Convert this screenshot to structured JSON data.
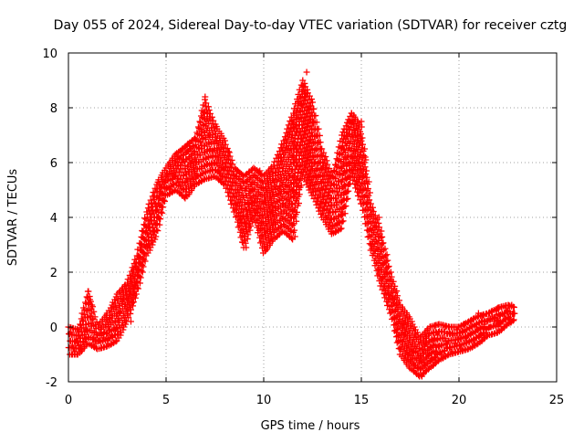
{
  "chart_data": {
    "type": "scatter",
    "title": "Day 055 of 2024, Sidereal Day-to-day VTEC variation (SDTVAR) for receiver cztg",
    "xlabel": "GPS time / hours",
    "ylabel": "SDTVAR / TECUs",
    "xlim": [
      0,
      25
    ],
    "ylim": [
      -2,
      10
    ],
    "xticks": [
      0,
      5,
      10,
      15,
      20,
      25
    ],
    "yticks": [
      -2,
      0,
      2,
      4,
      6,
      8,
      10
    ],
    "grid": true,
    "marker": "+",
    "color": "#ff0000",
    "series": [
      {
        "name": "SDTVAR",
        "points": [
          [
            0.1,
            -0.2
          ],
          [
            0.2,
            -0.7
          ],
          [
            0.3,
            -0.9
          ],
          [
            0.4,
            -0.5
          ],
          [
            0.5,
            -0.3
          ],
          [
            0.6,
            -0.8
          ],
          [
            0.8,
            -0.4
          ],
          [
            0.9,
            -0.1
          ],
          [
            1.0,
            1.3
          ],
          [
            1.1,
            1.0
          ],
          [
            1.2,
            0.8
          ],
          [
            1.3,
            -0.4
          ],
          [
            1.4,
            -0.6
          ],
          [
            1.5,
            -0.3
          ],
          [
            1.6,
            -0.5
          ],
          [
            1.8,
            -0.4
          ],
          [
            2.0,
            -0.5
          ],
          [
            2.1,
            0.3
          ],
          [
            2.2,
            -0.3
          ],
          [
            2.4,
            -0.1
          ],
          [
            2.6,
            0.5
          ],
          [
            2.8,
            1.0
          ],
          [
            3.0,
            0.8
          ],
          [
            3.1,
            1.2
          ],
          [
            3.2,
            0.2
          ],
          [
            3.3,
            0.9
          ],
          [
            3.4,
            1.5
          ],
          [
            3.5,
            2.2
          ],
          [
            3.6,
            2.5
          ],
          [
            3.7,
            2.9
          ],
          [
            3.8,
            2.4
          ],
          [
            3.9,
            3.2
          ],
          [
            4.0,
            3.6
          ],
          [
            4.1,
            3.0
          ],
          [
            4.2,
            3.9
          ],
          [
            4.3,
            4.2
          ],
          [
            4.4,
            3.5
          ],
          [
            4.5,
            4.4
          ],
          [
            4.6,
            4.0
          ],
          [
            4.7,
            4.8
          ],
          [
            4.8,
            5.2
          ],
          [
            4.9,
            4.6
          ],
          [
            5.0,
            5.4
          ],
          [
            5.1,
            5.5
          ],
          [
            5.2,
            5.0
          ],
          [
            5.3,
            5.6
          ],
          [
            5.4,
            5.5
          ],
          [
            5.5,
            5.9
          ],
          [
            5.6,
            6.2
          ],
          [
            5.7,
            5.3
          ],
          [
            5.8,
            6.0
          ],
          [
            5.9,
            6.1
          ],
          [
            6.0,
            4.8
          ],
          [
            6.1,
            6.4
          ],
          [
            6.2,
            6.6
          ],
          [
            6.3,
            6.0
          ],
          [
            6.4,
            5.4
          ],
          [
            6.5,
            6.0
          ],
          [
            6.6,
            5.5
          ],
          [
            6.7,
            6.5
          ],
          [
            6.8,
            7.2
          ],
          [
            6.9,
            7.8
          ],
          [
            7.0,
            8.4
          ],
          [
            7.1,
            7.6
          ],
          [
            7.2,
            7.0
          ],
          [
            7.3,
            5.9
          ],
          [
            7.4,
            6.4
          ],
          [
            7.5,
            6.0
          ],
          [
            7.6,
            6.8
          ],
          [
            7.7,
            5.7
          ],
          [
            7.8,
            5.4
          ],
          [
            8.0,
            5.8
          ],
          [
            8.2,
            6.4
          ],
          [
            8.5,
            4.5
          ],
          [
            8.6,
            5.5
          ],
          [
            8.8,
            4.0
          ],
          [
            8.9,
            3.1
          ],
          [
            9.0,
            3.3
          ],
          [
            9.1,
            2.9
          ],
          [
            9.2,
            4.5
          ],
          [
            9.4,
            5.0
          ],
          [
            9.5,
            4.6
          ],
          [
            9.6,
            4.2
          ],
          [
            9.8,
            5.7
          ],
          [
            10.0,
            4.5
          ],
          [
            10.1,
            2.8
          ],
          [
            10.2,
            3.5
          ],
          [
            10.4,
            4.2
          ],
          [
            10.5,
            3.8
          ],
          [
            10.6,
            4.4
          ],
          [
            10.8,
            5.0
          ],
          [
            10.9,
            6.2
          ],
          [
            11.0,
            4.5
          ],
          [
            11.2,
            6.5
          ],
          [
            11.3,
            5.5
          ],
          [
            11.4,
            4.0
          ],
          [
            11.5,
            5.0
          ],
          [
            11.6,
            3.3
          ],
          [
            11.7,
            6.5
          ],
          [
            11.8,
            8.2
          ],
          [
            11.9,
            8.4
          ],
          [
            12.0,
            8.8
          ],
          [
            12.1,
            8.5
          ],
          [
            12.2,
            9.3
          ],
          [
            12.3,
            8.0
          ],
          [
            12.4,
            6.8
          ],
          [
            12.5,
            7.5
          ],
          [
            12.6,
            6.0
          ],
          [
            12.7,
            5.5
          ],
          [
            12.8,
            5.0
          ],
          [
            12.9,
            4.5
          ],
          [
            13.0,
            5.8
          ],
          [
            13.1,
            4.4
          ],
          [
            13.2,
            4.0
          ],
          [
            13.3,
            5.5
          ],
          [
            13.4,
            3.8
          ],
          [
            13.5,
            3.6
          ],
          [
            13.6,
            5.2
          ],
          [
            13.7,
            3.5
          ],
          [
            13.8,
            3.8
          ],
          [
            13.9,
            5.6
          ],
          [
            14.0,
            4.2
          ],
          [
            14.1,
            6.5
          ],
          [
            14.2,
            6.0
          ],
          [
            14.3,
            7.0
          ],
          [
            14.4,
            7.5
          ],
          [
            14.5,
            7.8
          ],
          [
            14.6,
            7.4
          ],
          [
            14.7,
            7.0
          ],
          [
            14.8,
            6.8
          ],
          [
            14.9,
            6.0
          ],
          [
            15.0,
            7.5
          ],
          [
            15.1,
            5.5
          ],
          [
            15.2,
            6.2
          ],
          [
            15.3,
            4.5
          ],
          [
            15.4,
            3.5
          ],
          [
            15.5,
            3.0
          ],
          [
            15.7,
            2.8
          ],
          [
            15.9,
            4.0
          ],
          [
            16.0,
            2.5
          ],
          [
            16.1,
            1.8
          ],
          [
            16.2,
            1.5
          ],
          [
            16.3,
            2.0
          ],
          [
            16.4,
            1.2
          ],
          [
            16.6,
            1.0
          ],
          [
            16.7,
            0.3
          ],
          [
            16.8,
            -0.2
          ],
          [
            16.9,
            -0.5
          ],
          [
            17.0,
            -0.8
          ],
          [
            17.1,
            0.1
          ],
          [
            17.2,
            -0.3
          ],
          [
            17.3,
            -0.7
          ],
          [
            17.4,
            -1.0
          ],
          [
            17.5,
            -1.2
          ],
          [
            17.6,
            -0.9
          ],
          [
            17.7,
            -1.4
          ],
          [
            17.8,
            -0.8
          ],
          [
            17.9,
            -1.5
          ],
          [
            18.0,
            -1.1
          ],
          [
            18.1,
            -1.8
          ],
          [
            18.2,
            -1.3
          ],
          [
            18.3,
            -0.6
          ],
          [
            18.4,
            -1.0
          ],
          [
            18.5,
            -0.8
          ],
          [
            18.6,
            -1.2
          ],
          [
            18.7,
            -0.5
          ],
          [
            18.8,
            -1.1
          ],
          [
            18.9,
            -0.3
          ],
          [
            19.0,
            -0.7
          ],
          [
            19.1,
            -1.0
          ],
          [
            19.2,
            -0.4
          ],
          [
            19.3,
            0.0
          ],
          [
            19.4,
            -0.6
          ],
          [
            19.5,
            -0.2
          ],
          [
            19.6,
            -0.9
          ],
          [
            19.7,
            -0.3
          ],
          [
            19.8,
            -0.6
          ],
          [
            19.9,
            -0.1
          ],
          [
            20.0,
            -0.4
          ],
          [
            20.1,
            -0.8
          ],
          [
            20.2,
            -0.2
          ],
          [
            20.3,
            0.1
          ],
          [
            20.4,
            -0.5
          ],
          [
            20.5,
            -0.3
          ],
          [
            20.6,
            0.2
          ],
          [
            20.7,
            -0.2
          ],
          [
            20.8,
            -0.6
          ],
          [
            20.9,
            0.0
          ],
          [
            21.0,
            0.5
          ],
          [
            21.1,
            -0.3
          ],
          [
            21.2,
            0.4
          ],
          [
            21.3,
            0.1
          ],
          [
            21.4,
            -0.2
          ],
          [
            21.5,
            0.3
          ],
          [
            21.6,
            0.0
          ],
          [
            21.7,
            0.4
          ],
          [
            21.8,
            0.2
          ],
          [
            21.9,
            0.6
          ],
          [
            22.0,
            0.3
          ],
          [
            22.1,
            0.1
          ],
          [
            22.2,
            0.5
          ],
          [
            22.3,
            0.4
          ],
          [
            22.4,
            0.7
          ],
          [
            22.5,
            0.6
          ],
          [
            22.6,
            0.3
          ],
          [
            22.7,
            0.8
          ],
          [
            22.8,
            0.5
          ]
        ],
        "bands": [
          [
            0.0,
            -1.0,
            0.0
          ],
          [
            0.5,
            -1.0,
            -0.1
          ],
          [
            1.0,
            -0.6,
            1.3
          ],
          [
            1.5,
            -0.8,
            0.0
          ],
          [
            2.0,
            -0.7,
            0.5
          ],
          [
            2.5,
            -0.5,
            1.2
          ],
          [
            3.0,
            0.2,
            1.6
          ],
          [
            3.5,
            1.2,
            2.6
          ],
          [
            4.0,
            2.6,
            4.2
          ],
          [
            4.5,
            3.3,
            5.2
          ],
          [
            5.0,
            4.8,
            5.8
          ],
          [
            5.5,
            5.0,
            6.3
          ],
          [
            6.0,
            4.7,
            6.6
          ],
          [
            6.5,
            5.2,
            6.9
          ],
          [
            7.0,
            5.4,
            8.3
          ],
          [
            7.5,
            5.5,
            7.4
          ],
          [
            8.0,
            5.2,
            6.8
          ],
          [
            8.5,
            4.2,
            5.8
          ],
          [
            9.0,
            2.9,
            5.5
          ],
          [
            9.5,
            4.0,
            5.8
          ],
          [
            10.0,
            2.7,
            5.5
          ],
          [
            10.5,
            3.2,
            5.9
          ],
          [
            11.0,
            3.5,
            6.8
          ],
          [
            11.5,
            3.2,
            7.8
          ],
          [
            12.0,
            5.5,
            9.0
          ],
          [
            12.5,
            4.8,
            8.2
          ],
          [
            13.0,
            4.0,
            6.5
          ],
          [
            13.5,
            3.4,
            5.5
          ],
          [
            14.0,
            3.6,
            7.0
          ],
          [
            14.5,
            5.5,
            7.8
          ],
          [
            15.0,
            4.5,
            7.3
          ],
          [
            15.5,
            2.8,
            4.5
          ],
          [
            16.0,
            1.5,
            3.5
          ],
          [
            16.5,
            0.5,
            2.0
          ],
          [
            17.0,
            -1.0,
            0.8
          ],
          [
            17.5,
            -1.5,
            0.3
          ],
          [
            18.0,
            -1.8,
            -0.4
          ],
          [
            18.5,
            -1.5,
            0.0
          ],
          [
            19.0,
            -1.2,
            0.1
          ],
          [
            19.5,
            -1.0,
            0.0
          ],
          [
            20.0,
            -0.9,
            0.0
          ],
          [
            20.5,
            -0.8,
            0.2
          ],
          [
            21.0,
            -0.6,
            0.4
          ],
          [
            21.5,
            -0.3,
            0.5
          ],
          [
            22.0,
            -0.2,
            0.7
          ],
          [
            22.5,
            0.1,
            0.8
          ],
          [
            22.9,
            0.3,
            0.7
          ]
        ]
      }
    ]
  }
}
